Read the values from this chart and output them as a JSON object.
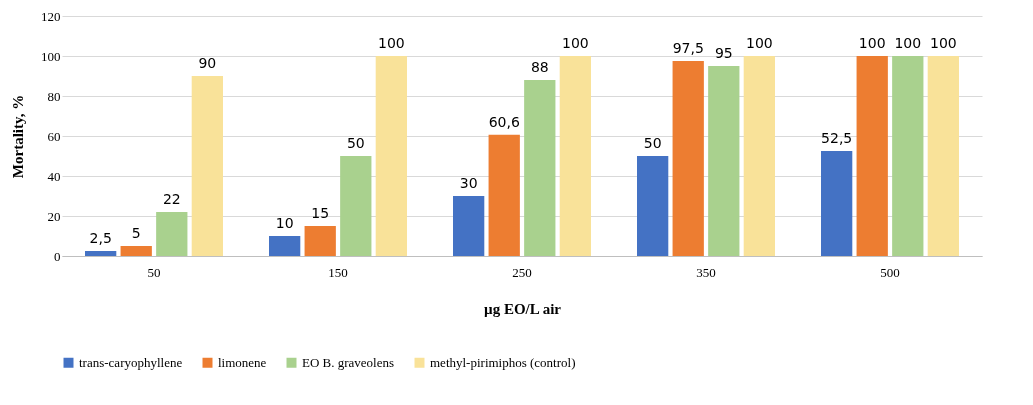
{
  "chart_data": {
    "type": "bar",
    "xlabel": "µg EO/L air",
    "ylabel": "Mortality, %",
    "categories": [
      "50",
      "150",
      "250",
      "350",
      "500"
    ],
    "series": [
      {
        "name": "trans-caryophyllene",
        "color": "#4472c4",
        "values": [
          2.5,
          10,
          30,
          50,
          52.5
        ],
        "value_labels": [
          "2,5",
          "10",
          "30",
          "50",
          "52,5"
        ]
      },
      {
        "name": "limonene",
        "color": "#ed7d31",
        "values": [
          5,
          15,
          60.6,
          97.5,
          100
        ],
        "value_labels": [
          "5",
          "15",
          "60,6",
          "97,5",
          "100"
        ]
      },
      {
        "name": "EO B. graveolens",
        "color": "#a9d18e",
        "values": [
          22,
          50,
          88,
          95,
          100
        ],
        "value_labels": [
          "22",
          "50",
          "88",
          "95",
          "100"
        ]
      },
      {
        "name": "methyl-pirimiphos (control)",
        "color": "#f9e299",
        "values": [
          90,
          100,
          100,
          100,
          100
        ],
        "value_labels": [
          "90",
          "100",
          "100",
          "100",
          "100"
        ]
      }
    ],
    "ylim": [
      0,
      120
    ],
    "yticks": [
      0,
      20,
      40,
      60,
      80,
      100,
      120
    ],
    "grid": "y",
    "legend": "bottom"
  }
}
